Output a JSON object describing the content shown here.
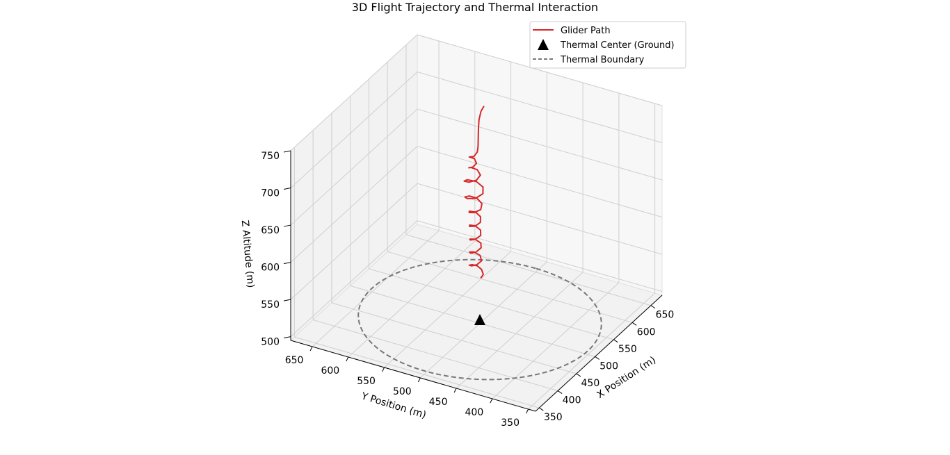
{
  "chart_data": {
    "type": "line3d",
    "title": "3D Flight Trajectory and Thermal Interaction",
    "xlabel": "X Position (m)",
    "ylabel": "Y Position (m)",
    "zlabel": "Z Altitude (m)",
    "xlim": [
      340,
      680
    ],
    "ylim": [
      340,
      680
    ],
    "zlim": [
      495,
      750
    ],
    "x_ticks": [
      350,
      400,
      450,
      500,
      550,
      600,
      650
    ],
    "y_ticks": [
      350,
      400,
      450,
      500,
      550,
      600,
      650
    ],
    "z_ticks": [
      500,
      550,
      600,
      650,
      700,
      750
    ],
    "grid": true,
    "legend_position": "upper-right",
    "series": [
      {
        "name": "Glider Path",
        "type": "line",
        "color": "#d62728",
        "points": [
          [
            510,
            504,
            550
          ],
          [
            515,
            503,
            553
          ],
          [
            520,
            508,
            556
          ],
          [
            522,
            515,
            558
          ],
          [
            518,
            520,
            560
          ],
          [
            510,
            520,
            563
          ],
          [
            505,
            514,
            566
          ],
          [
            508,
            508,
            568
          ],
          [
            516,
            506,
            570
          ],
          [
            522,
            511,
            573
          ],
          [
            521,
            519,
            576
          ],
          [
            513,
            521,
            579
          ],
          [
            506,
            516,
            582
          ],
          [
            507,
            509,
            585
          ],
          [
            515,
            506,
            588
          ],
          [
            522,
            510,
            590
          ],
          [
            522,
            518,
            593
          ],
          [
            514,
            521,
            596
          ],
          [
            507,
            517,
            599
          ],
          [
            507,
            510,
            602
          ],
          [
            514,
            506,
            605
          ],
          [
            521,
            510,
            608
          ],
          [
            522,
            518,
            611
          ],
          [
            515,
            522,
            614
          ],
          [
            507,
            518,
            617
          ],
          [
            506,
            510,
            620
          ],
          [
            513,
            506,
            623
          ],
          [
            521,
            510,
            626
          ],
          [
            523,
            518,
            629
          ],
          [
            516,
            523,
            632
          ],
          [
            508,
            519,
            635
          ],
          [
            506,
            511,
            638
          ],
          [
            512,
            505,
            641
          ],
          [
            521,
            508,
            644
          ],
          [
            525,
            517,
            647
          ],
          [
            520,
            525,
            650
          ],
          [
            510,
            526,
            653
          ],
          [
            503,
            519,
            656
          ],
          [
            504,
            508,
            659
          ],
          [
            514,
            503,
            662
          ],
          [
            524,
            508,
            665
          ],
          [
            527,
            519,
            668
          ],
          [
            520,
            528,
            671
          ],
          [
            510,
            527,
            674
          ],
          [
            506,
            518,
            677
          ],
          [
            510,
            510,
            680
          ],
          [
            519,
            509,
            683
          ],
          [
            524,
            516,
            686
          ],
          [
            520,
            523,
            689
          ],
          [
            513,
            522,
            692
          ],
          [
            512,
            516,
            695
          ],
          [
            518,
            514,
            698
          ],
          [
            522,
            519,
            701
          ],
          [
            519,
            524,
            703
          ],
          [
            514,
            522,
            706
          ],
          [
            515,
            516,
            708
          ],
          [
            522,
            515,
            711
          ],
          [
            530,
            518,
            714
          ],
          [
            542,
            524,
            717
          ],
          [
            558,
            532,
            720
          ],
          [
            575,
            540,
            723
          ],
          [
            592,
            546,
            725
          ],
          [
            604,
            548,
            726
          ]
        ]
      },
      {
        "name": "Thermal Center (Ground)",
        "type": "marker",
        "marker": "triangle",
        "color": "#000000",
        "points": [
          [
            500,
            500,
            500
          ]
        ]
      },
      {
        "name": "Thermal Boundary",
        "type": "circle",
        "style": "dashed",
        "color": "#777777",
        "center": [
          500,
          500,
          500
        ],
        "radius": 150
      }
    ]
  }
}
